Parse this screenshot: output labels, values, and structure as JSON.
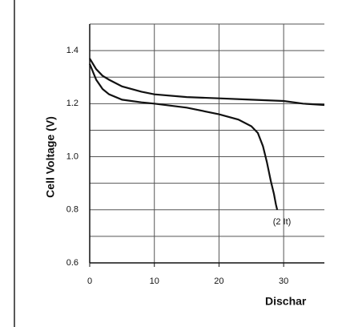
{
  "chart_data": {
    "type": "line",
    "ylabel": "Cell Voltage (V)",
    "xlabel": "Dischar",
    "annotation": "(2 It)",
    "xlim": [
      0,
      36.3
    ],
    "ylim": [
      0.6,
      1.5
    ],
    "xticks": [
      0,
      10,
      20,
      30
    ],
    "yticks": [
      0.6,
      0.8,
      {
        "value": 1.0,
        "label": "1.0"
      },
      1.2,
      1.4
    ],
    "y_minor_grid": [
      0.7,
      0.9,
      1.1,
      1.3,
      1.5
    ],
    "grid": true,
    "series": [
      {
        "color": "#111111",
        "x": [
          0,
          1,
          2,
          3,
          5,
          8,
          10,
          15,
          20,
          25,
          30,
          33,
          36.3
        ],
        "values": [
          1.37,
          1.33,
          1.305,
          1.29,
          1.265,
          1.245,
          1.235,
          1.225,
          1.22,
          1.215,
          1.21,
          1.2,
          1.195
        ]
      },
      {
        "color": "#111111",
        "x": [
          0,
          1,
          2,
          3,
          5,
          8,
          10,
          15,
          20,
          23,
          25,
          26,
          26.8,
          27.4,
          28,
          28.5,
          28.8,
          29
        ],
        "values": [
          1.35,
          1.29,
          1.255,
          1.235,
          1.215,
          1.205,
          1.2,
          1.185,
          1.16,
          1.14,
          1.115,
          1.09,
          1.04,
          0.98,
          0.91,
          0.86,
          0.82,
          0.8
        ]
      }
    ]
  }
}
